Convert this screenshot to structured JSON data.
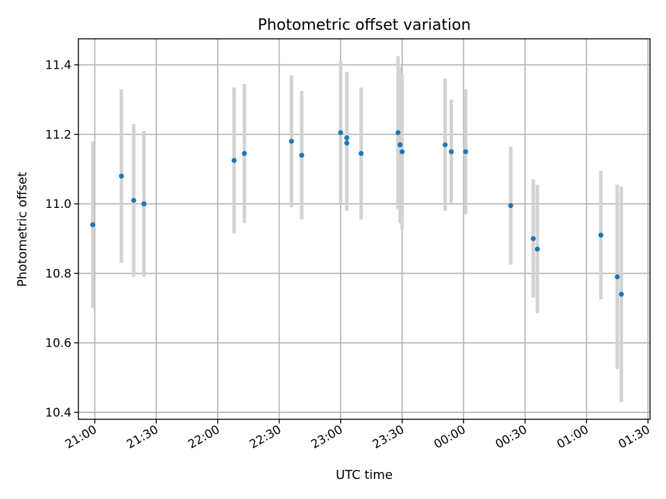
{
  "chart_data": {
    "type": "scatter",
    "title": "Photometric offset variation",
    "xlabel": "UTC time",
    "ylabel": "Photometric offset",
    "x_ticks": [
      "21:00",
      "21:30",
      "22:00",
      "22:30",
      "23:00",
      "23:30",
      "00:00",
      "00:30",
      "01:00",
      "01:30"
    ],
    "y_ticks": [
      10.4,
      10.6,
      10.8,
      11.0,
      11.2,
      11.4
    ],
    "xlim": [
      "20:52",
      "01:31"
    ],
    "ylim": [
      10.38,
      11.475
    ],
    "grid": true,
    "point_color": "#1f77b4",
    "errorbar_color": "#d3d3d3",
    "points": [
      {
        "time": "20:59",
        "value": 10.94,
        "err": 0.24
      },
      {
        "time": "21:13",
        "value": 11.08,
        "err": 0.25
      },
      {
        "time": "21:19",
        "value": 11.01,
        "err": 0.22
      },
      {
        "time": "21:24",
        "value": 11.0,
        "err": 0.21
      },
      {
        "time": "22:08",
        "value": 11.125,
        "err": 0.21
      },
      {
        "time": "22:13",
        "value": 11.145,
        "err": 0.2
      },
      {
        "time": "22:36",
        "value": 11.18,
        "err": 0.19
      },
      {
        "time": "22:41",
        "value": 11.14,
        "err": 0.185
      },
      {
        "time": "23:00",
        "value": 11.205,
        "err": 0.205
      },
      {
        "time": "23:03",
        "value": 11.19,
        "err": 0.19
      },
      {
        "time": "23:03",
        "value": 11.175,
        "err": 0.195
      },
      {
        "time": "23:10",
        "value": 11.145,
        "err": 0.19
      },
      {
        "time": "23:28",
        "value": 11.205,
        "err": 0.22
      },
      {
        "time": "23:29",
        "value": 11.17,
        "err": 0.225
      },
      {
        "time": "23:30",
        "value": 11.15,
        "err": 0.225
      },
      {
        "time": "23:51",
        "value": 11.17,
        "err": 0.19
      },
      {
        "time": "23:54",
        "value": 11.15,
        "err": 0.15
      },
      {
        "time": "00:01",
        "value": 11.15,
        "err": 0.18
      },
      {
        "time": "00:23",
        "value": 10.995,
        "err": 0.17
      },
      {
        "time": "00:34",
        "value": 10.9,
        "err": 0.17
      },
      {
        "time": "00:36",
        "value": 10.87,
        "err": 0.185
      },
      {
        "time": "01:07",
        "value": 10.91,
        "err": 0.185
      },
      {
        "time": "01:15",
        "value": 10.79,
        "err": 0.265
      },
      {
        "time": "01:17",
        "value": 10.74,
        "err": 0.31
      }
    ]
  }
}
